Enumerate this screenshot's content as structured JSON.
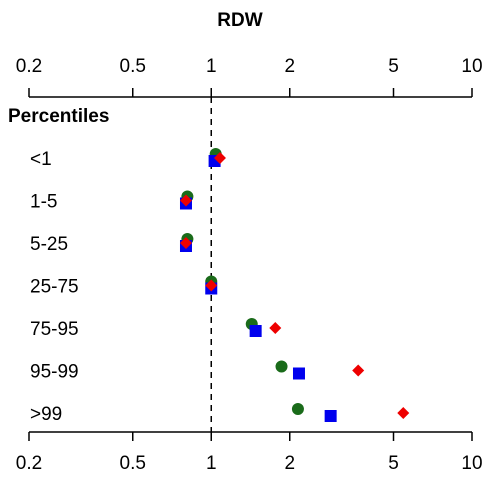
{
  "chart_data": {
    "type": "scatter",
    "title": "RDW",
    "x_scale": "log",
    "xlim": [
      0.2,
      10
    ],
    "x_ticks": [
      0.2,
      0.5,
      1,
      2,
      5,
      10
    ],
    "x_tick_labels": [
      "0.2",
      "0.5",
      "1",
      "2",
      "5",
      "10"
    ],
    "reference_line": 1,
    "group_header": "Percentiles",
    "categories": [
      "<1",
      "1-5",
      "5-25",
      "25-75",
      "75-95",
      "95-99",
      ">99"
    ],
    "series": [
      {
        "marker": "circle",
        "color": "#1a6b1a",
        "values": [
          1.04,
          0.81,
          0.81,
          1.0,
          1.43,
          1.86,
          2.15
        ]
      },
      {
        "marker": "square",
        "color": "#0000ee",
        "values": [
          1.03,
          0.8,
          0.8,
          1.0,
          1.48,
          2.17,
          2.87
        ]
      },
      {
        "marker": "diamond",
        "color": "#ee0000",
        "values": [
          1.08,
          0.8,
          0.8,
          1.0,
          1.76,
          3.66,
          5.45
        ]
      }
    ],
    "grid": false,
    "legend": "none"
  }
}
